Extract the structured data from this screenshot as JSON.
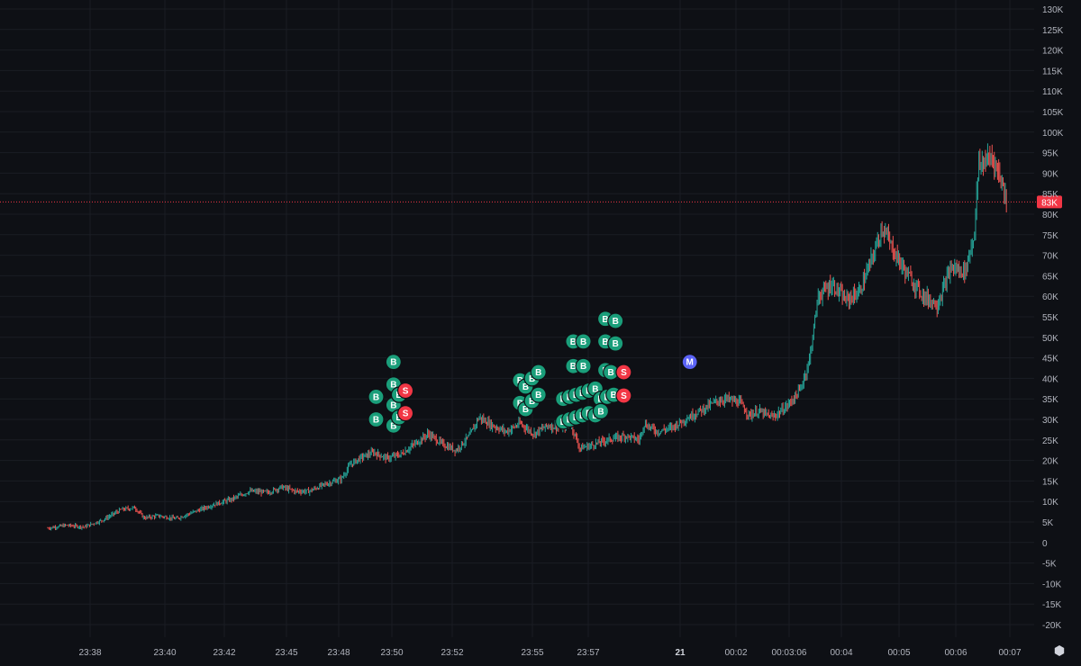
{
  "chart_data": {
    "type": "candlestick",
    "title": "",
    "xlabel": "",
    "ylabel": "",
    "ylim": [
      -20000,
      130000
    ],
    "y_ticks": [
      "130K",
      "125K",
      "120K",
      "115K",
      "110K",
      "105K",
      "100K",
      "95K",
      "90K",
      "85K",
      "80K",
      "75K",
      "70K",
      "65K",
      "60K",
      "55K",
      "50K",
      "45K",
      "40K",
      "35K",
      "30K",
      "25K",
      "20K",
      "15K",
      "10K",
      "5K",
      "0",
      "-5K",
      "-10K",
      "-15K",
      "-20K"
    ],
    "y_tick_values": [
      130000,
      125000,
      120000,
      115000,
      110000,
      105000,
      100000,
      95000,
      90000,
      85000,
      80000,
      75000,
      70000,
      65000,
      60000,
      55000,
      50000,
      45000,
      40000,
      35000,
      30000,
      25000,
      20000,
      15000,
      10000,
      5000,
      0,
      -5000,
      -10000,
      -15000,
      -20000
    ],
    "x_ticks": [
      "23:38",
      "23:40",
      "23:42",
      "23:45",
      "23:48",
      "23:50",
      "23:52",
      "23:55",
      "23:57",
      "21",
      "00:02",
      "00:03:06",
      "00:04",
      "00:05",
      "00:06",
      "00:07"
    ],
    "x_tick_bold": [
      "21"
    ],
    "current_price_label": "83K",
    "current_price": 83000,
    "grid": true,
    "price_path": [
      [
        0,
        3500
      ],
      [
        2,
        4200
      ],
      [
        4,
        3800
      ],
      [
        6,
        5500
      ],
      [
        8,
        8000
      ],
      [
        9.5,
        8500
      ],
      [
        10.5,
        6000
      ],
      [
        12,
        6500
      ],
      [
        14,
        5800
      ],
      [
        16,
        7500
      ],
      [
        18,
        9200
      ],
      [
        20,
        10500
      ],
      [
        22,
        12500
      ],
      [
        24,
        12200
      ],
      [
        25.5,
        13500
      ],
      [
        27,
        12500
      ],
      [
        28.5,
        12500
      ],
      [
        30,
        14000
      ],
      [
        32,
        15500
      ],
      [
        33,
        19000
      ],
      [
        34,
        20500
      ],
      [
        35.5,
        22000
      ],
      [
        37,
        20500
      ],
      [
        38.5,
        21500
      ],
      [
        40,
        24000
      ],
      [
        41.5,
        26500
      ],
      [
        43,
        24000
      ],
      [
        44.5,
        22500
      ],
      [
        46,
        26000
      ],
      [
        47,
        30500
      ],
      [
        48.5,
        28500
      ],
      [
        50,
        27000
      ],
      [
        51.5,
        29000
      ],
      [
        53,
        26500
      ],
      [
        54.5,
        28500
      ],
      [
        56,
        28000
      ],
      [
        57,
        29000
      ],
      [
        58,
        23000
      ],
      [
        59,
        23500
      ],
      [
        61,
        25000
      ],
      [
        63,
        26000
      ],
      [
        64.5,
        25000
      ],
      [
        65,
        29000
      ],
      [
        66.5,
        27000
      ],
      [
        68,
        28000
      ],
      [
        69.5,
        30000
      ],
      [
        71,
        32000
      ],
      [
        73,
        34500
      ],
      [
        74,
        35000
      ],
      [
        75.5,
        34000
      ],
      [
        76.5,
        31000
      ],
      [
        77.5,
        32000
      ],
      [
        79,
        30500
      ],
      [
        80.5,
        33000
      ],
      [
        82,
        37000
      ],
      [
        83,
        44000
      ],
      [
        84,
        60000
      ],
      [
        85.5,
        63000
      ],
      [
        87,
        59000
      ],
      [
        88.5,
        61000
      ],
      [
        90,
        70000
      ],
      [
        91,
        77000
      ],
      [
        92,
        72000
      ],
      [
        93.5,
        66000
      ],
      [
        95.5,
        60000
      ],
      [
        97,
        58000
      ],
      [
        98.5,
        67000
      ],
      [
        100,
        66000
      ],
      [
        101,
        75000
      ],
      [
        101.5,
        92000
      ],
      [
        103,
        94000
      ],
      [
        104,
        88000
      ],
      [
        104.6,
        83000
      ]
    ],
    "trade_markers": [
      {
        "type": "B",
        "t": 37.7,
        "v": 44000
      },
      {
        "type": "B",
        "t": 37.7,
        "v": 38500
      },
      {
        "type": "B",
        "t": 35.8,
        "v": 35500
      },
      {
        "type": "B",
        "t": 37.7,
        "v": 33500
      },
      {
        "type": "B",
        "t": 38.3,
        "v": 36000
      },
      {
        "type": "B",
        "t": 35.8,
        "v": 30000
      },
      {
        "type": "B",
        "t": 37.7,
        "v": 28500
      },
      {
        "type": "B",
        "t": 38.3,
        "v": 30500
      },
      {
        "type": "S",
        "t": 39.0,
        "v": 37000
      },
      {
        "type": "S",
        "t": 39.0,
        "v": 31500
      },
      {
        "type": "B",
        "t": 51.5,
        "v": 39500
      },
      {
        "type": "B",
        "t": 52.1,
        "v": 38000
      },
      {
        "type": "B",
        "t": 52.8,
        "v": 40000
      },
      {
        "type": "B",
        "t": 53.5,
        "v": 41500
      },
      {
        "type": "B",
        "t": 51.5,
        "v": 34000
      },
      {
        "type": "B",
        "t": 52.1,
        "v": 32500
      },
      {
        "type": "B",
        "t": 52.8,
        "v": 34500
      },
      {
        "type": "B",
        "t": 53.5,
        "v": 36000
      },
      {
        "type": "B",
        "t": 57.3,
        "v": 49000
      },
      {
        "type": "B",
        "t": 58.4,
        "v": 49000
      },
      {
        "type": "B",
        "t": 60.8,
        "v": 54500
      },
      {
        "type": "B",
        "t": 61.9,
        "v": 54000
      },
      {
        "type": "B",
        "t": 60.8,
        "v": 49000
      },
      {
        "type": "B",
        "t": 61.9,
        "v": 48500
      },
      {
        "type": "B",
        "t": 57.3,
        "v": 43000
      },
      {
        "type": "B",
        "t": 58.4,
        "v": 43000
      },
      {
        "type": "B",
        "t": 60.8,
        "v": 42000
      },
      {
        "type": "B",
        "t": 61.4,
        "v": 41500
      },
      {
        "type": "B",
        "t": 56.2,
        "v": 35000
      },
      {
        "type": "B",
        "t": 56.9,
        "v": 35500
      },
      {
        "type": "B",
        "t": 57.6,
        "v": 36000
      },
      {
        "type": "B",
        "t": 58.3,
        "v": 36500
      },
      {
        "type": "B",
        "t": 59.0,
        "v": 37000
      },
      {
        "type": "B",
        "t": 59.7,
        "v": 37500
      },
      {
        "type": "B",
        "t": 60.3,
        "v": 35000
      },
      {
        "type": "B",
        "t": 61.0,
        "v": 35500
      },
      {
        "type": "B",
        "t": 61.7,
        "v": 36000
      },
      {
        "type": "B",
        "t": 56.2,
        "v": 29500
      },
      {
        "type": "B",
        "t": 56.9,
        "v": 30000
      },
      {
        "type": "B",
        "t": 57.6,
        "v": 30500
      },
      {
        "type": "B",
        "t": 58.3,
        "v": 31000
      },
      {
        "type": "B",
        "t": 59.0,
        "v": 31500
      },
      {
        "type": "B",
        "t": 59.7,
        "v": 31000
      },
      {
        "type": "B",
        "t": 60.3,
        "v": 32000
      },
      {
        "type": "S",
        "t": 62.8,
        "v": 41500
      },
      {
        "type": "S",
        "t": 62.8,
        "v": 35800
      },
      {
        "type": "M",
        "t": 70.0,
        "v": 44000
      }
    ],
    "colors": {
      "background": "#0e1015",
      "grid": "#1a1d24",
      "axis_text": "#b2b5be",
      "up": "#26a69a",
      "down": "#ef5350",
      "buy_marker": "#1a9e7a",
      "sell_marker": "#f23645",
      "manual_marker": "#5b63f6",
      "price_line": "#f23645"
    }
  }
}
